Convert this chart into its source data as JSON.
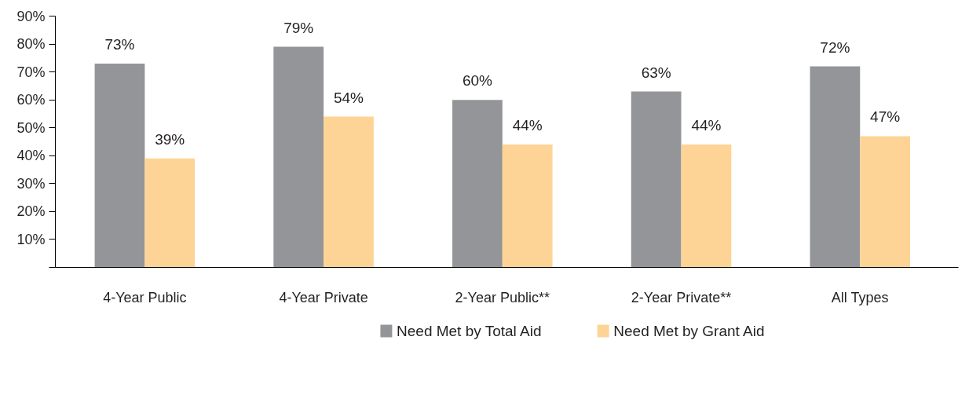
{
  "chart_data": {
    "type": "bar",
    "categories": [
      "4-Year Public",
      "4-Year Private",
      "2-Year Public**",
      "2-Year Private**",
      "All Types"
    ],
    "series": [
      {
        "name": "Need Met by Total Aid",
        "color": "#939598",
        "values": [
          73,
          79,
          60,
          63,
          72
        ],
        "value_labels": [
          "73%",
          "79%",
          "60%",
          "63%",
          "72%"
        ]
      },
      {
        "name": "Need Met by Grant Aid",
        "color": "#fdd495",
        "values": [
          39,
          54,
          44,
          44,
          47
        ],
        "value_labels": [
          "39%",
          "54%",
          "44%",
          "44%",
          "47%"
        ]
      }
    ],
    "ylim": [
      0,
      90
    ],
    "yticks": [
      {
        "value": 0,
        "label": null
      },
      {
        "value": 10,
        "label": "10%"
      },
      {
        "value": 20,
        "label": "20%"
      },
      {
        "value": 30,
        "label": "30%"
      },
      {
        "value": 40,
        "label": "40%"
      },
      {
        "value": 50,
        "label": "50%"
      },
      {
        "value": 60,
        "label": "60%"
      },
      {
        "value": 70,
        "label": "70%"
      },
      {
        "value": 80,
        "label": "80%"
      },
      {
        "value": 90,
        "label": "90%"
      }
    ],
    "grid": false,
    "legend": "bottom"
  }
}
